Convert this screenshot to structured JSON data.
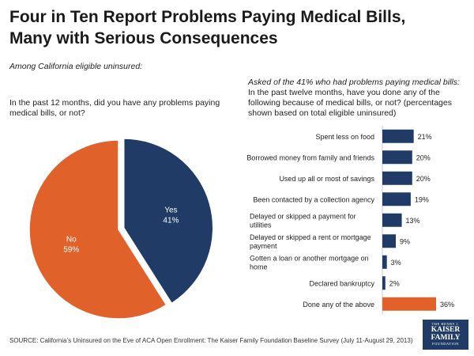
{
  "header": {
    "title": "Four in Ten Report Problems Paying Medical Bills, Many with Serious Consequences",
    "subtitle": "Among California eligible uninsured:"
  },
  "pie_question": "In the past 12 months, did you have any problems paying medical bills, or not?",
  "bar_question": {
    "lead": "Asked of the 41% who had problems paying medical bills:",
    "text": "In the past twelve months, have you done any of the following because of medical bills, or not? (percentages shown based on total eligible uninsured)"
  },
  "source": "SOURCE: California’s Uninsured on the Eve of ACA Open Enrollment: The Kaiser Family Foundation Baseline Survey (July 11-August 29, 2013)",
  "logo": {
    "line1": "THE HENRY J.",
    "line2a": "KAISER",
    "line2b": "FAMILY",
    "line3": "FOUNDATION"
  },
  "colors": {
    "navy": "#1f3b66",
    "orange": "#e0612a"
  },
  "chart_data": [
    {
      "type": "pie",
      "title": "In the past 12 months, did you have any problems paying medical bills, or not?",
      "slices": [
        {
          "label": "Yes",
          "value": 41,
          "value_label": "41%",
          "color": "#1f3b66"
        },
        {
          "label": "No",
          "value": 59,
          "value_label": "59%",
          "color": "#e0612a"
        }
      ]
    },
    {
      "type": "bar",
      "orientation": "horizontal",
      "categories": [
        "Spent less on food",
        "Borrowed money from family and friends",
        "Used up all or most of savings",
        "Been contacted by a collection agency",
        "Delayed or skipped a payment for utilities",
        "Delayed or skipped a rent or mortgage payment",
        "Gotten a loan or another mortgage on home",
        "Declared bankruptcy",
        "Done any of the above"
      ],
      "values": [
        21,
        20,
        20,
        19,
        13,
        9,
        3,
        2,
        36
      ],
      "value_labels": [
        "21%",
        "20%",
        "20%",
        "19%",
        "13%",
        "9%",
        "3%",
        "2%",
        "36%"
      ],
      "colors": [
        "#1f3b66",
        "#1f3b66",
        "#1f3b66",
        "#1f3b66",
        "#1f3b66",
        "#1f3b66",
        "#1f3b66",
        "#1f3b66",
        "#e0612a"
      ],
      "xlim": [
        0,
        36
      ]
    }
  ]
}
